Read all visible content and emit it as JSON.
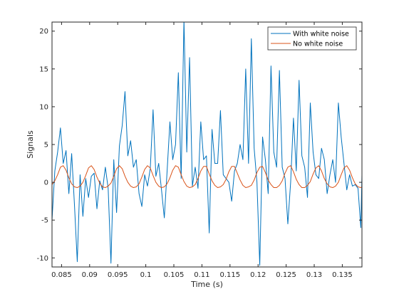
{
  "chart_data": {
    "type": "line",
    "title": "",
    "xlabel": "Time (s)",
    "ylabel": "Signals",
    "xlim": [
      0.0833,
      0.1385
    ],
    "ylim": [
      -11.2,
      21.2
    ],
    "x_ticks": [
      0.085,
      0.09,
      0.095,
      0.1,
      0.105,
      0.11,
      0.115,
      0.12,
      0.125,
      0.13,
      0.135
    ],
    "x_tick_labels": [
      "0.085",
      "0.09",
      "0.095",
      "0.1",
      "0.105",
      "0.11",
      "0.115",
      "0.12",
      "0.125",
      "0.13",
      "0.135"
    ],
    "y_ticks": [
      -10,
      -5,
      0,
      5,
      10,
      15,
      20
    ],
    "y_tick_labels": [
      "-10",
      "-5",
      "0",
      "5",
      "10",
      "15",
      "20"
    ],
    "grid": false,
    "legend_position": "top-right",
    "series": [
      {
        "name": "With white noise",
        "color": "#0072BD",
        "x": [
          0.0833,
          0.0838,
          0.0843,
          0.0848,
          0.0853,
          0.0858,
          0.0863,
          0.0868,
          0.0873,
          0.0878,
          0.0883,
          0.0888,
          0.0893,
          0.0898,
          0.0903,
          0.0908,
          0.0913,
          0.0918,
          0.0923,
          0.0928,
          0.0933,
          0.0938,
          0.0943,
          0.0948,
          0.0953,
          0.0958,
          0.0963,
          0.0968,
          0.0973,
          0.0978,
          0.0983,
          0.0988,
          0.0993,
          0.0998,
          0.1003,
          0.1008,
          0.1013,
          0.1018,
          0.1023,
          0.1028,
          0.1033,
          0.1038,
          0.1043,
          0.1048,
          0.1053,
          0.1058,
          0.1063,
          0.1068,
          0.1073,
          0.1078,
          0.1083,
          0.1088,
          0.1093,
          0.1098,
          0.1103,
          0.1108,
          0.1113,
          0.1118,
          0.1123,
          0.1128,
          0.1133,
          0.1138,
          0.1143,
          0.1148,
          0.1153,
          0.1158,
          0.1163,
          0.1168,
          0.1173,
          0.1178,
          0.1183,
          0.1188,
          0.1193,
          0.1198,
          0.1203,
          0.1208,
          0.1213,
          0.1218,
          0.1223,
          0.1228,
          0.1233,
          0.1238,
          0.1243,
          0.1248,
          0.1253,
          0.1258,
          0.1263,
          0.1268,
          0.1273,
          0.1278,
          0.1283,
          0.1288,
          0.1293,
          0.1298,
          0.1303,
          0.1308,
          0.1313,
          0.1318,
          0.1323,
          0.1328,
          0.1333,
          0.1338,
          0.1343,
          0.1348,
          0.1353,
          0.1358,
          0.1363,
          0.1368,
          0.1373,
          0.1378,
          0.1383,
          0.1385
        ],
        "y": [
          -5.0,
          1.5,
          4.0,
          7.2,
          2.5,
          4.2,
          -1.5,
          3.8,
          -3.0,
          -10.5,
          1.0,
          -4.5,
          0.5,
          -2.0,
          0.8,
          1.2,
          -3.5,
          0.2,
          -1.0,
          2.0,
          -0.8,
          -10.7,
          3.0,
          -4.0,
          4.8,
          7.5,
          12.0,
          3.5,
          5.5,
          2.0,
          3.0,
          -1.5,
          -3.2,
          1.0,
          -0.5,
          1.8,
          9.6,
          0.8,
          2.5,
          -1.0,
          -4.7,
          1.5,
          8.0,
          3.0,
          5.0,
          14.5,
          0.5,
          21.5,
          4.0,
          16.5,
          -0.5,
          2.0,
          -0.8,
          8.0,
          3.0,
          3.5,
          -6.7,
          7.0,
          2.5,
          2.5,
          9.5,
          1.0,
          0.5,
          0.0,
          -2.5,
          1.5,
          2.5,
          5.0,
          3.0,
          15.0,
          2.5,
          19.0,
          4.5,
          0.0,
          -11.0,
          6.0,
          3.0,
          -1.5,
          15.4,
          4.0,
          2.0,
          14.8,
          2.0,
          0.5,
          -5.5,
          0.0,
          8.5,
          1.5,
          13.5,
          3.5,
          2.0,
          -2.0,
          10.5,
          4.0,
          1.0,
          0.5,
          4.5,
          3.0,
          -1.5,
          1.0,
          3.0,
          0.0,
          10.5,
          6.0,
          2.5,
          -1.0,
          1.0,
          -0.5,
          -0.3,
          -0.8,
          -6.0,
          1.0
        ]
      },
      {
        "name": "No white noise",
        "color": "#D95319",
        "x": [
          0.0833,
          0.0838,
          0.0843,
          0.0848,
          0.0853,
          0.0858,
          0.0863,
          0.0868,
          0.0873,
          0.0878,
          0.0883,
          0.0888,
          0.0893,
          0.0898,
          0.0903,
          0.0908,
          0.0913,
          0.0918,
          0.0923,
          0.0928,
          0.0933,
          0.0938,
          0.0943,
          0.0948,
          0.0953,
          0.0958,
          0.0963,
          0.0968,
          0.0973,
          0.0978,
          0.0983,
          0.0988,
          0.0993,
          0.0998,
          0.1003,
          0.1008,
          0.1013,
          0.1018,
          0.1023,
          0.1028,
          0.1033,
          0.1038,
          0.1043,
          0.1048,
          0.1053,
          0.1058,
          0.1063,
          0.1068,
          0.1073,
          0.1078,
          0.1083,
          0.1088,
          0.1093,
          0.1098,
          0.1103,
          0.1108,
          0.1113,
          0.1118,
          0.1123,
          0.1128,
          0.1133,
          0.1138,
          0.1143,
          0.1148,
          0.1153,
          0.1158,
          0.1163,
          0.1168,
          0.1173,
          0.1178,
          0.1183,
          0.1188,
          0.1193,
          0.1198,
          0.1203,
          0.1208,
          0.1213,
          0.1218,
          0.1223,
          0.1228,
          0.1233,
          0.1238,
          0.1243,
          0.1248,
          0.1253,
          0.1258,
          0.1263,
          0.1268,
          0.1273,
          0.1278,
          0.1283,
          0.1288,
          0.1293,
          0.1298,
          0.1303,
          0.1308,
          0.1313,
          0.1318,
          0.1323,
          0.1328,
          0.1333,
          0.1338,
          0.1343,
          0.1348,
          0.1353,
          0.1358,
          0.1363,
          0.1368,
          0.1373,
          0.1378,
          0.1383,
          0.1385
        ],
        "y": [
          -0.3,
          0.2,
          1.0,
          2.0,
          2.2,
          1.6,
          0.6,
          -0.2,
          -0.6,
          -0.7,
          -0.5,
          0.0,
          0.9,
          1.9,
          2.2,
          1.7,
          0.7,
          -0.1,
          -0.6,
          -0.7,
          -0.5,
          -0.1,
          0.8,
          1.8,
          2.2,
          1.8,
          0.8,
          0.0,
          -0.5,
          -0.7,
          -0.6,
          -0.2,
          0.7,
          1.7,
          2.2,
          1.9,
          0.9,
          0.0,
          -0.5,
          -0.7,
          -0.6,
          -0.2,
          0.6,
          1.6,
          2.2,
          2.0,
          1.0,
          0.1,
          -0.5,
          -0.7,
          -0.6,
          -0.3,
          0.5,
          1.5,
          2.1,
          2.1,
          1.1,
          0.2,
          -0.4,
          -0.7,
          -0.6,
          -0.3,
          0.4,
          1.4,
          2.1,
          2.1,
          1.2,
          0.3,
          -0.4,
          -0.7,
          -0.6,
          -0.4,
          0.3,
          1.3,
          2.0,
          2.1,
          1.3,
          0.3,
          -0.3,
          -0.7,
          -0.7,
          -0.4,
          0.2,
          1.2,
          2.0,
          2.2,
          1.4,
          0.4,
          -0.3,
          -0.7,
          -0.7,
          -0.4,
          0.1,
          1.1,
          1.9,
          2.2,
          1.5,
          0.5,
          -0.2,
          -0.6,
          -0.7,
          -0.5,
          0.0,
          1.0,
          1.9,
          2.2,
          1.6,
          0.6,
          -0.2,
          -0.6,
          -0.7,
          -0.6
        ]
      }
    ]
  }
}
